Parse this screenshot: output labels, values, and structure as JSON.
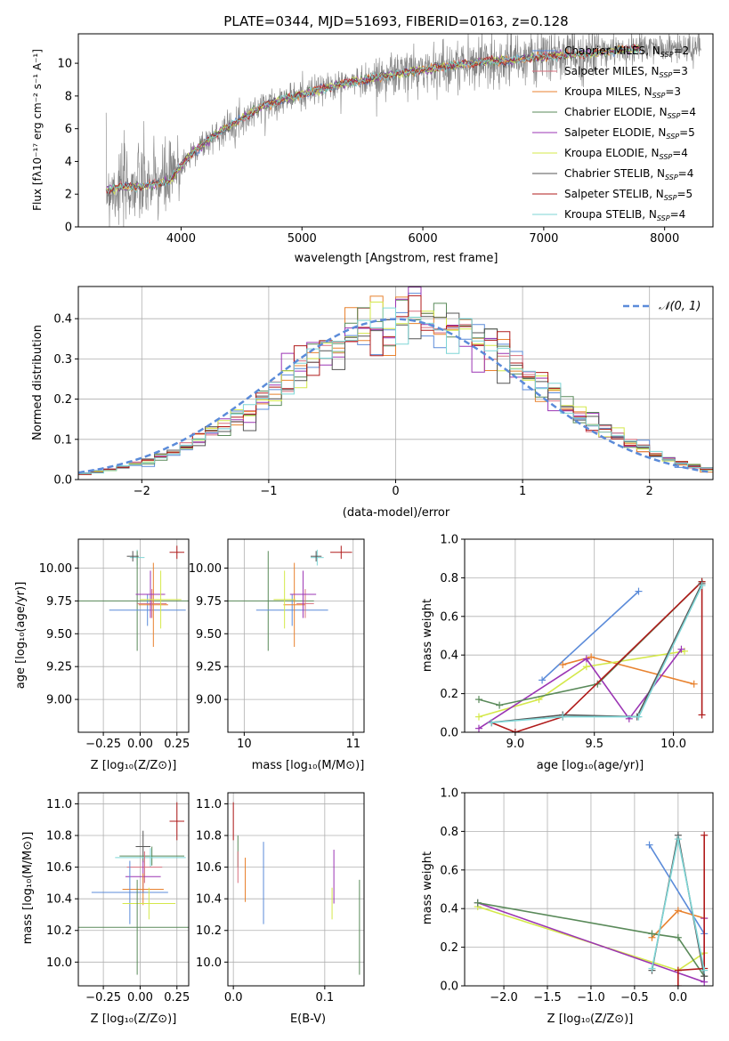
{
  "figure": {
    "title": "PLATE=0344, MJD=51693, FIBERID=0163, z=0.128"
  },
  "chart_data": [
    {
      "id": "spectrum",
      "type": "line",
      "xlabel": "wavelength [Angstrom, rest frame]",
      "ylabel": "Flux [fλ10⁻¹⁷ erg cm⁻² s⁻¹ A⁻¹]",
      "xlim": [
        3150,
        8400
      ],
      "ylim": [
        0,
        11.8
      ],
      "xticks": [
        4000,
        5000,
        6000,
        7000,
        8000
      ],
      "yticks": [
        0,
        2,
        4,
        6,
        8,
        10
      ],
      "grid": false,
      "legend_position": "top-right",
      "data_color": "#808080",
      "data_x_range": [
        3380,
        8300
      ],
      "model_continuum": {
        "x": [
          3380,
          3500,
          3700,
          3900,
          4000,
          4100,
          4300,
          4500,
          4700,
          5000,
          5300,
          5600,
          5900,
          6200,
          6500,
          6800,
          7000,
          7200,
          7400,
          7600,
          7800
        ],
        "y": [
          2.3,
          2.4,
          2.5,
          2.8,
          3.7,
          4.6,
          5.7,
          6.6,
          7.5,
          8.1,
          8.7,
          9.1,
          9.5,
          9.8,
          10.1,
          10.2,
          10.4,
          10.5,
          10.6,
          10.8,
          10.9
        ]
      },
      "legend": [
        {
          "label": "Chabrier MILES, N",
          "sub": "SSP",
          "suffix": "=2",
          "color": "#5b8bd9"
        },
        {
          "label": "Salpeter MILES, N",
          "sub": "SSP",
          "suffix": "=3",
          "color": "#d86f7e"
        },
        {
          "label": "Kroupa MILES, N",
          "sub": "SSP",
          "suffix": "=3",
          "color": "#e8822f"
        },
        {
          "label": "Chabrier ELODIE, N",
          "sub": "SSP",
          "suffix": "=4",
          "color": "#5a8a5a"
        },
        {
          "label": "Salpeter ELODIE, N",
          "sub": "SSP",
          "suffix": "=5",
          "color": "#9b35b4"
        },
        {
          "label": "Kroupa ELODIE, N",
          "sub": "SSP",
          "suffix": "=4",
          "color": "#d4e84a"
        },
        {
          "label": "Chabrier STELIB, N",
          "sub": "SSP",
          "suffix": "=4",
          "color": "#555555"
        },
        {
          "label": "Salpeter STELIB, N",
          "sub": "SSP",
          "suffix": "=5",
          "color": "#b01b1b"
        },
        {
          "label": "Kroupa STELIB, N",
          "sub": "SSP",
          "suffix": "=4",
          "color": "#7ed6d6"
        }
      ]
    },
    {
      "id": "residuals",
      "type": "line",
      "xlabel": "(data-model)/error",
      "ylabel": "Normed distribution",
      "xlim": [
        -2.5,
        2.5
      ],
      "ylim": [
        0,
        0.48
      ],
      "xticks": [
        -2,
        -1,
        0,
        1,
        2
      ],
      "yticks": [
        0.0,
        0.1,
        0.2,
        0.3,
        0.4
      ],
      "grid": true,
      "legend_position": "top-right",
      "gaussian_label": "𝒩(0, 1)",
      "gaussian_color": "#5b8bd9",
      "bin_width": 0.1
    },
    {
      "id": "age-vs-z",
      "type": "scatter",
      "xlabel": "Z [log₁₀(Z/Z⊙)]",
      "ylabel": "age  [log₁₀(age/yr)]",
      "xlim": [
        -0.42,
        0.33
      ],
      "ylim": [
        8.75,
        10.22
      ],
      "xticks": [
        -0.25,
        0.0,
        0.25
      ],
      "yticks": [
        9.0,
        9.25,
        9.5,
        9.75,
        10.0
      ],
      "grid": true,
      "points": [
        {
          "x": -0.02,
          "y": 10.08,
          "xerr": 0.05,
          "yerr": 0.06,
          "color": "#7ed6d6"
        },
        {
          "x": 0.25,
          "y": 10.12,
          "xerr": 0.05,
          "yerr": 0.05,
          "color": "#b01b1b"
        },
        {
          "x": -0.02,
          "y": 9.75,
          "xerr": 0.4,
          "yerr": 0.38,
          "color": "#5a8a5a"
        },
        {
          "x": 0.05,
          "y": 9.68,
          "xerr": 0.26,
          "yerr": 0.12,
          "color": "#5b8bd9"
        },
        {
          "x": 0.09,
          "y": 9.72,
          "xerr": 0.1,
          "yerr": 0.32,
          "color": "#e8822f"
        },
        {
          "x": 0.08,
          "y": 9.73,
          "xerr": 0.1,
          "yerr": 0.11,
          "color": "#d86f7e"
        },
        {
          "x": 0.07,
          "y": 9.8,
          "xerr": 0.1,
          "yerr": 0.18,
          "color": "#9b35b4"
        },
        {
          "x": 0.14,
          "y": 9.76,
          "xerr": 0.14,
          "yerr": 0.22,
          "color": "#d4e84a"
        },
        {
          "x": -0.05,
          "y": 10.09,
          "xerr": 0.04,
          "yerr": 0.04,
          "color": "#555555"
        }
      ]
    },
    {
      "id": "age-vs-mass",
      "type": "scatter",
      "xlabel": "mass [log₁₀(M/M⊙)]",
      "ylabel": "",
      "xlim": [
        9.85,
        11.1
      ],
      "ylim": [
        8.75,
        10.22
      ],
      "xticks": [
        10,
        11
      ],
      "yticks": [
        9.0,
        9.25,
        9.5,
        9.75,
        10.0
      ],
      "grid": true,
      "points": [
        {
          "x": 10.67,
          "y": 10.08,
          "xerr": 0.06,
          "yerr": 0.06,
          "color": "#7ed6d6"
        },
        {
          "x": 10.89,
          "y": 10.12,
          "xerr": 0.1,
          "yerr": 0.05,
          "color": "#b01b1b"
        },
        {
          "x": 10.22,
          "y": 9.75,
          "xerr": 0.42,
          "yerr": 0.38,
          "color": "#5a8a5a"
        },
        {
          "x": 10.44,
          "y": 9.68,
          "xerr": 0.33,
          "yerr": 0.12,
          "color": "#5b8bd9"
        },
        {
          "x": 10.46,
          "y": 9.72,
          "xerr": 0.1,
          "yerr": 0.32,
          "color": "#e8822f"
        },
        {
          "x": 10.56,
          "y": 9.73,
          "xerr": 0.08,
          "yerr": 0.11,
          "color": "#d86f7e"
        },
        {
          "x": 10.54,
          "y": 9.8,
          "xerr": 0.12,
          "yerr": 0.18,
          "color": "#9b35b4"
        },
        {
          "x": 10.37,
          "y": 9.76,
          "xerr": 0.1,
          "yerr": 0.22,
          "color": "#d4e84a"
        },
        {
          "x": 10.66,
          "y": 10.09,
          "xerr": 0.05,
          "yerr": 0.04,
          "color": "#555555"
        }
      ]
    },
    {
      "id": "massweight-vs-age",
      "type": "line",
      "xlabel": "age  [log₁₀(age/yr)]",
      "ylabel": "mass weight",
      "xlim": [
        8.68,
        10.25
      ],
      "ylim": [
        0.0,
        1.0
      ],
      "xticks": [
        9.0,
        9.5,
        10.0
      ],
      "yticks": [
        0.0,
        0.2,
        0.4,
        0.6,
        0.8,
        1.0
      ],
      "grid": true,
      "series": [
        {
          "color": "#5b8bd9",
          "x": [
            9.17,
            9.78
          ],
          "y": [
            0.27,
            0.73
          ]
        },
        {
          "color": "#e8822f",
          "x": [
            9.3,
            9.48,
            10.13
          ],
          "y": [
            0.35,
            0.39,
            0.25
          ]
        },
        {
          "color": "#d4e84a",
          "x": [
            8.77,
            9.15,
            9.45,
            10.07
          ],
          "y": [
            0.08,
            0.17,
            0.34,
            0.42
          ]
        },
        {
          "color": "#9b35b4",
          "x": [
            8.77,
            9.45,
            9.72,
            10.05
          ],
          "y": [
            0.02,
            0.38,
            0.07,
            0.43
          ]
        },
        {
          "color": "#5a8a5a",
          "x": [
            8.77,
            8.9,
            9.52,
            10.18
          ],
          "y": [
            0.17,
            0.14,
            0.25,
            0.78
          ]
        },
        {
          "color": "#b01b1b",
          "x": [
            8.85,
            9.0,
            9.3,
            10.18,
            10.18
          ],
          "y": [
            0.05,
            0.0,
            0.08,
            0.78,
            0.09
          ]
        },
        {
          "color": "#555555",
          "x": [
            8.85,
            9.3,
            9.77,
            10.18
          ],
          "y": [
            0.05,
            0.09,
            0.08,
            0.77
          ]
        },
        {
          "color": "#7ed6d6",
          "x": [
            8.85,
            9.3,
            9.78,
            10.18
          ],
          "y": [
            0.05,
            0.08,
            0.08,
            0.76
          ]
        }
      ]
    },
    {
      "id": "mass-vs-z",
      "type": "scatter",
      "xlabel": "Z [log₁₀(Z/Z⊙)]",
      "ylabel": "mass [log₁₀(M/M⊙)]",
      "xlim": [
        -0.42,
        0.33
      ],
      "ylim": [
        9.85,
        11.07
      ],
      "xticks": [
        -0.25,
        0.0,
        0.25
      ],
      "yticks": [
        10.0,
        10.2,
        10.4,
        10.6,
        10.8,
        11.0
      ],
      "grid": true,
      "points": [
        {
          "x": 0.25,
          "y": 10.89,
          "xerr": 0.05,
          "yerr": 0.12,
          "color": "#b01b1b"
        },
        {
          "x": 0.02,
          "y": 10.73,
          "xerr": 0.05,
          "yerr": 0.1,
          "color": "#555555"
        },
        {
          "x": 0.08,
          "y": 10.67,
          "xerr": 0.22,
          "yerr": 0.06,
          "color": "#5a8a5a"
        },
        {
          "x": 0.07,
          "y": 10.66,
          "xerr": 0.24,
          "yerr": 0.06,
          "color": "#7ed6d6"
        },
        {
          "x": 0.03,
          "y": 10.6,
          "xerr": 0.12,
          "yerr": 0.1,
          "color": "#d86f7e"
        },
        {
          "x": 0.02,
          "y": 10.54,
          "xerr": 0.12,
          "yerr": 0.1,
          "color": "#9b35b4"
        },
        {
          "x": 0.02,
          "y": 10.46,
          "xerr": 0.14,
          "yerr": 0.1,
          "color": "#e8822f"
        },
        {
          "x": -0.07,
          "y": 10.44,
          "xerr": 0.26,
          "yerr": 0.2,
          "color": "#5b8bd9"
        },
        {
          "x": 0.06,
          "y": 10.37,
          "xerr": 0.18,
          "yerr": 0.1,
          "color": "#d4e84a"
        },
        {
          "x": -0.02,
          "y": 10.22,
          "xerr": 0.48,
          "yerr": 0.3,
          "color": "#5a8a5a"
        }
      ]
    },
    {
      "id": "mass-vs-ebv",
      "type": "scatter",
      "xlabel": "E(B-V)",
      "ylabel": "",
      "xlim": [
        -0.006,
        0.143
      ],
      "ylim": [
        9.85,
        11.07
      ],
      "xticks": [
        0.0,
        0.1
      ],
      "yticks": [
        10.0,
        10.2,
        10.4,
        10.6,
        10.8,
        11.0
      ],
      "grid": true,
      "points": [
        {
          "x": 0.0,
          "y": 10.89,
          "xerr": 0,
          "yerr": 0.12,
          "color": "#b01b1b"
        },
        {
          "x": 0.005,
          "y": 10.7,
          "xerr": 0,
          "yerr": 0.1,
          "color": "#5a8a5a"
        },
        {
          "x": 0.005,
          "y": 10.6,
          "xerr": 0,
          "yerr": 0.1,
          "color": "#d86f7e"
        },
        {
          "x": 0.013,
          "y": 10.52,
          "xerr": 0,
          "yerr": 0.14,
          "color": "#e8822f"
        },
        {
          "x": 0.033,
          "y": 10.5,
          "xerr": 0,
          "yerr": 0.26,
          "color": "#5b8bd9"
        },
        {
          "x": 0.11,
          "y": 10.54,
          "xerr": 0,
          "yerr": 0.17,
          "color": "#9b35b4"
        },
        {
          "x": 0.108,
          "y": 10.37,
          "xerr": 0,
          "yerr": 0.1,
          "color": "#d4e84a"
        },
        {
          "x": 0.138,
          "y": 10.22,
          "xerr": 0,
          "yerr": 0.3,
          "color": "#5a8a5a"
        }
      ]
    },
    {
      "id": "massweight-vs-z",
      "type": "line",
      "xlabel": "Z [log₁₀(Z/Z⊙)]",
      "ylabel": "mass weight",
      "xlim": [
        -2.45,
        0.4
      ],
      "ylim": [
        0.0,
        1.0
      ],
      "xticks": [
        -2.0,
        -1.5,
        -1.0,
        -0.5,
        0.0
      ],
      "yticks": [
        0.0,
        0.2,
        0.4,
        0.6,
        0.8,
        1.0
      ],
      "grid": true,
      "series": [
        {
          "color": "#5b8bd9",
          "x": [
            -0.33,
            0.3
          ],
          "y": [
            0.73,
            0.27
          ]
        },
        {
          "color": "#e8822f",
          "x": [
            -0.3,
            0.0,
            0.3
          ],
          "y": [
            0.25,
            0.39,
            0.35
          ]
        },
        {
          "color": "#d4e84a",
          "x": [
            -2.3,
            0.0,
            0.3
          ],
          "y": [
            0.41,
            0.08,
            0.17
          ]
        },
        {
          "color": "#9b35b4",
          "x": [
            -2.3,
            0.3,
            0.3
          ],
          "y": [
            0.43,
            0.02,
            0.35
          ]
        },
        {
          "color": "#5a8a5a",
          "x": [
            -2.3,
            -0.3,
            0.0,
            0.3
          ],
          "y": [
            0.43,
            0.27,
            0.25,
            0.05
          ]
        },
        {
          "color": "#b01b1b",
          "x": [
            0.0,
            0.0,
            0.3,
            0.3
          ],
          "y": [
            0.0,
            0.08,
            0.09,
            0.78
          ]
        },
        {
          "color": "#555555",
          "x": [
            -0.3,
            0.0,
            0.3
          ],
          "y": [
            0.08,
            0.78,
            0.05
          ]
        },
        {
          "color": "#7ed6d6",
          "x": [
            -0.3,
            0.0,
            0.3
          ],
          "y": [
            0.09,
            0.76,
            0.08
          ]
        }
      ]
    }
  ]
}
